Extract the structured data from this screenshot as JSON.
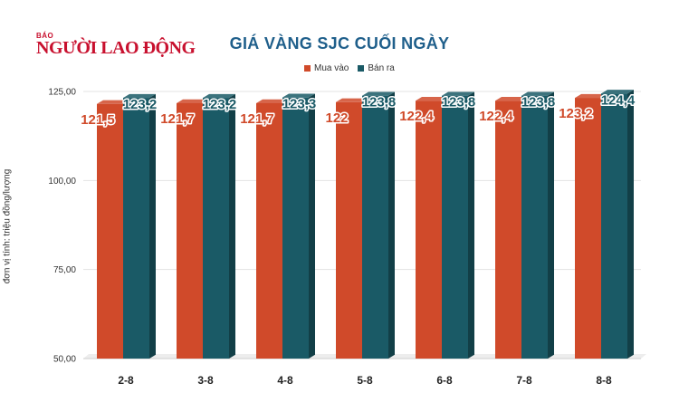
{
  "logo": {
    "small": "BÁO",
    "main": "NGƯỜI LAO ĐỘNG"
  },
  "chart_data": {
    "type": "bar",
    "title": "GIÁ VÀNG SJC CUỐI NGÀY",
    "ylabel": "đơn vị tính: triệu đồng/lượng",
    "xlabel": "",
    "categories": [
      "2-8",
      "3-8",
      "4-8",
      "5-8",
      "6-8",
      "7-8",
      "8-8"
    ],
    "series": [
      {
        "name": "Mua vào",
        "color": "#d04a2a",
        "values": [
          121.5,
          121.7,
          121.7,
          122,
          122.4,
          122.4,
          123.2
        ],
        "labels": [
          "121,5",
          "121,7",
          "121,7",
          "122",
          "122,4",
          "122,4",
          "123,2"
        ]
      },
      {
        "name": "Bán ra",
        "color": "#1a5a66",
        "values": [
          123.2,
          123.2,
          123.3,
          123.8,
          123.8,
          123.8,
          124.4
        ],
        "labels": [
          "123,2",
          "123,2",
          "123,3",
          "123,8",
          "123,8",
          "123,8",
          "124,4"
        ]
      }
    ],
    "ylim": [
      50,
      125
    ],
    "yticks": [
      50,
      75,
      100,
      125
    ],
    "ytick_labels": [
      "50,00",
      "75,00",
      "100,00",
      "125,00"
    ],
    "grid": true,
    "legend": "top-center"
  }
}
